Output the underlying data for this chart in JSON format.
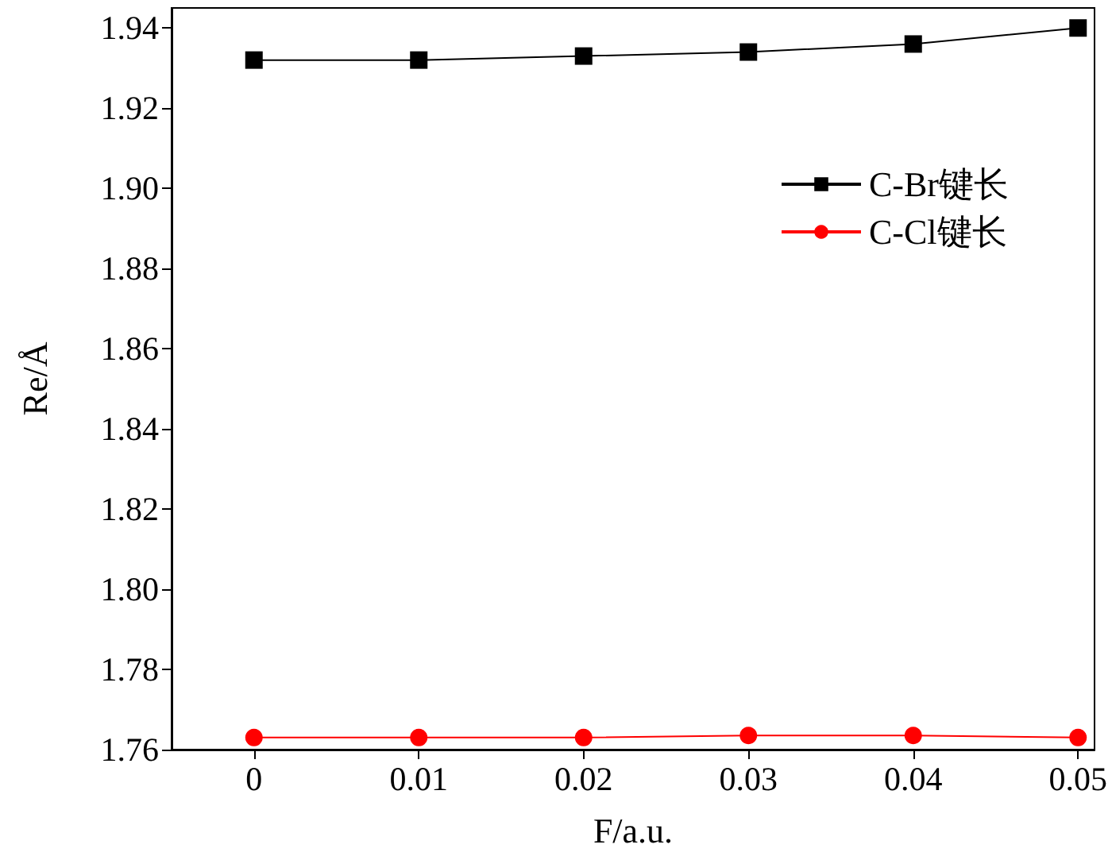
{
  "chart_data": {
    "type": "line",
    "xlabel": "F/a.u.",
    "ylabel": "Re/Å",
    "x": [
      0,
      0.01,
      0.02,
      0.03,
      0.04,
      0.05
    ],
    "series": [
      {
        "name": "C-Br键长",
        "color": "#000000",
        "marker": "square",
        "values": [
          1.932,
          1.932,
          1.933,
          1.934,
          1.936,
          1.94
        ]
      },
      {
        "name": "C-Cl键长",
        "color": "#ff0000",
        "marker": "circle",
        "values": [
          1.763,
          1.763,
          1.763,
          1.7635,
          1.7635,
          1.763
        ]
      }
    ],
    "xlim": [
      -0.005,
      0.051
    ],
    "xticks": [
      0,
      0.01,
      0.02,
      0.03,
      0.04,
      0.05
    ],
    "ylim": [
      1.76,
      1.945
    ],
    "yticks": [
      1.76,
      1.78,
      {
        "value": 1.8,
        "label": "1.80"
      },
      1.82,
      1.84,
      1.86,
      1.88,
      {
        "value": 1.9,
        "label": "1.90"
      },
      1.92,
      1.94
    ],
    "grid": false,
    "legend": "top right",
    "line_style": "solid"
  }
}
